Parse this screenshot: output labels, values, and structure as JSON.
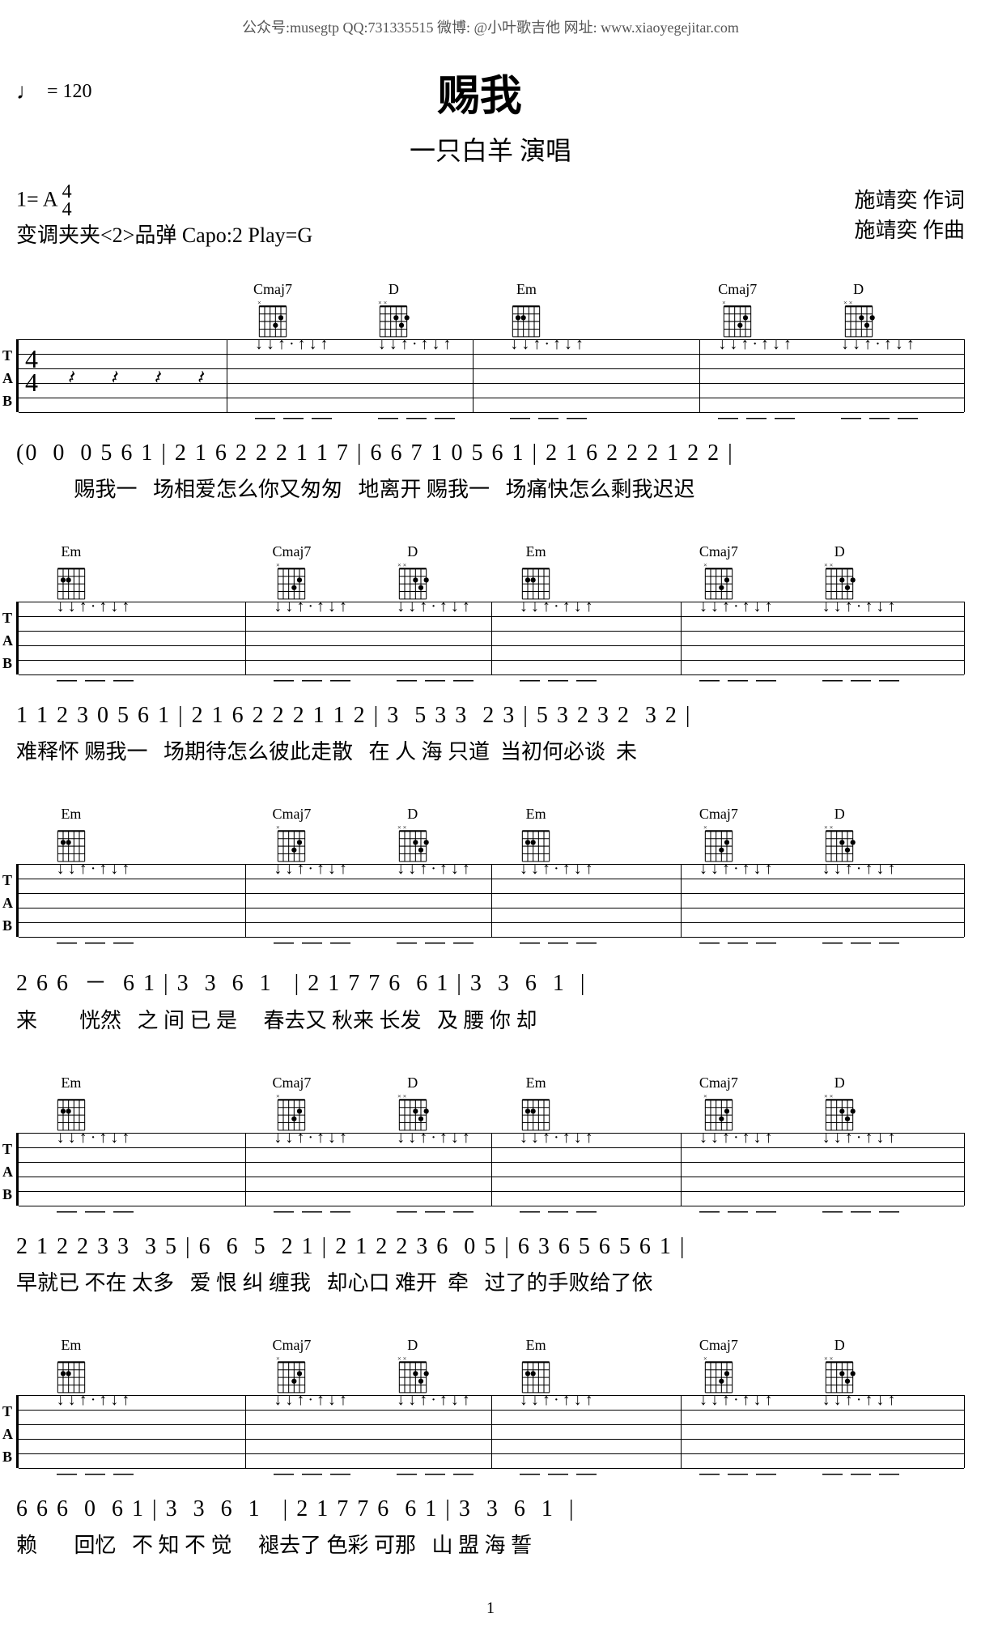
{
  "header": {
    "info_line": "公众号:musegtp  QQ:731335515  微博: @小叶歌吉他  网址: www.xiaoyegejitar.com",
    "tempo_symbol": "♩",
    "tempo_eq": "= 120",
    "title": "赐我",
    "subtitle": "一只白羊  演唱",
    "key": "1= A",
    "time_sig_top": "4",
    "time_sig_bottom": "4",
    "capo": "变调夹夹<2>品弹 Capo:2 Play=G",
    "credit1": "施靖奕  作词",
    "credit2": "施靖奕  作曲"
  },
  "chords": {
    "Cmaj7": "Cmaj7",
    "D": "D",
    "Em": "Em"
  },
  "systems": [
    {
      "chord_positions": [
        {
          "name": "Cmaj7",
          "left_pct": 25
        },
        {
          "name": "D",
          "left_pct": 38
        },
        {
          "name": "Em",
          "left_pct": 52
        },
        {
          "name": "Cmaj7",
          "left_pct": 74
        },
        {
          "name": "D",
          "left_pct": 87
        }
      ],
      "has_timesig": true,
      "barlines_pct": [
        22,
        48,
        72,
        100
      ],
      "numbers": "(0  0  0 5 6 1 | 2 1 6 2 2 2 1 1 7 | 6 6 7 1 0 5 6 1 | 2 1 6 2 2 2 1 2 2 |",
      "lyrics": "           赐我一   场相爱怎么你又匆匆   地离开 赐我一   场痛快怎么剩我迟迟"
    },
    {
      "chord_positions": [
        {
          "name": "Em",
          "left_pct": 4
        },
        {
          "name": "Cmaj7",
          "left_pct": 27
        },
        {
          "name": "D",
          "left_pct": 40
        },
        {
          "name": "Em",
          "left_pct": 53
        },
        {
          "name": "Cmaj7",
          "left_pct": 72
        },
        {
          "name": "D",
          "left_pct": 85
        }
      ],
      "has_timesig": false,
      "barlines_pct": [
        24,
        50,
        70,
        100
      ],
      "numbers": "1 1 2 3 0 5 6 1 | 2 1 6 2 2 2 1 1 2 | 3  5 3 3  2 3 | 5 3 2 3 2  3 2 |",
      "lyrics": "难释怀 赐我一   场期待怎么彼此走散   在 人 海 只道  当初何必谈  未"
    },
    {
      "chord_positions": [
        {
          "name": "Em",
          "left_pct": 4
        },
        {
          "name": "Cmaj7",
          "left_pct": 27
        },
        {
          "name": "D",
          "left_pct": 40
        },
        {
          "name": "Em",
          "left_pct": 53
        },
        {
          "name": "Cmaj7",
          "left_pct": 72
        },
        {
          "name": "D",
          "left_pct": 85
        }
      ],
      "has_timesig": false,
      "barlines_pct": [
        24,
        50,
        70,
        100
      ],
      "numbers": "2 6 6  －  6 1 | 3  3  6  1   | 2 1 7 7 6  6 1 | 3  3  6  1  |",
      "lyrics": "来        恍然   之 间 已 是     春去又 秋来 长发   及 腰 你 却"
    },
    {
      "chord_positions": [
        {
          "name": "Em",
          "left_pct": 4
        },
        {
          "name": "Cmaj7",
          "left_pct": 27
        },
        {
          "name": "D",
          "left_pct": 40
        },
        {
          "name": "Em",
          "left_pct": 53
        },
        {
          "name": "Cmaj7",
          "left_pct": 72
        },
        {
          "name": "D",
          "left_pct": 85
        }
      ],
      "has_timesig": false,
      "barlines_pct": [
        24,
        50,
        70,
        100
      ],
      "numbers": "2 1 2 2 3 3  3 5 | 6  6  5  2 1 | 2 1 2 2 3 6  0 5 | 6 3 6 5 6 5 6 1 |",
      "lyrics": "早就已 不在 太多   爱 恨 纠 缠我   却心口 难开  牵   过了的手败给了依"
    },
    {
      "chord_positions": [
        {
          "name": "Em",
          "left_pct": 4
        },
        {
          "name": "Cmaj7",
          "left_pct": 27
        },
        {
          "name": "D",
          "left_pct": 40
        },
        {
          "name": "Em",
          "left_pct": 53
        },
        {
          "name": "Cmaj7",
          "left_pct": 72
        },
        {
          "name": "D",
          "left_pct": 85
        }
      ],
      "has_timesig": false,
      "barlines_pct": [
        24,
        50,
        70,
        100
      ],
      "numbers": "6 6 6  0  6 1 | 3  3  6  1   | 2 1 7 7 6  6 1 | 3  3  6  1  |",
      "lyrics": "赖       回忆   不 知 不 觉     褪去了 色彩 可那   山 盟 海 誓"
    }
  ],
  "page_number": "1",
  "colors": {
    "text": "#000000",
    "bg": "#ffffff",
    "header_text": "#555555"
  }
}
